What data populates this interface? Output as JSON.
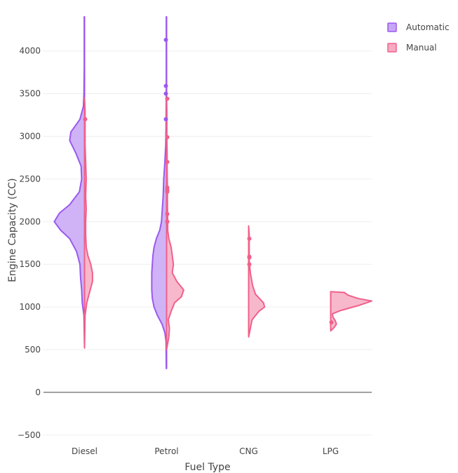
{
  "chart_data": {
    "type": "violin",
    "xlabel": "Fuel Type",
    "ylabel": "Engine Capacity (CC)",
    "categories": [
      "Diesel",
      "Petrol",
      "CNG",
      "LPG"
    ],
    "ylim": [
      -600,
      4400
    ],
    "yticks": [
      -500,
      0,
      500,
      1000,
      1500,
      2000,
      2500,
      3000,
      3500,
      4000
    ],
    "ytick_labels": [
      "−500",
      "0",
      "500",
      "1000",
      "1500",
      "2000",
      "2500",
      "3000",
      "3500",
      "4000"
    ],
    "grid": true,
    "legend_position": "top-right",
    "side_by_side_halves": true,
    "series": [
      {
        "name": "Automatic",
        "side": "left",
        "color": "#9b59f0",
        "fill": "#c7a6f5",
        "violins": {
          "Diesel": {
            "range": [
              520,
              4400
            ],
            "profile": [
              [
                520,
                0
              ],
              [
                900,
                1
              ],
              [
                1050,
                4
              ],
              [
                1200,
                5
              ],
              [
                1350,
                7
              ],
              [
                1500,
                8
              ],
              [
                1650,
                14
              ],
              [
                1800,
                26
              ],
              [
                1900,
                42
              ],
              [
                2000,
                53
              ],
              [
                2100,
                44
              ],
              [
                2200,
                26
              ],
              [
                2350,
                9
              ],
              [
                2500,
                5
              ],
              [
                2650,
                6
              ],
              [
                2800,
                15
              ],
              [
                2950,
                26
              ],
              [
                3050,
                24
              ],
              [
                3200,
                8
              ],
              [
                3350,
                2
              ],
              [
                3500,
                1
              ],
              [
                3800,
                0.5
              ],
              [
                4400,
                0.5
              ]
            ],
            "points": []
          },
          "Petrol": {
            "range": [
              280,
              4400
            ],
            "profile": [
              [
                280,
                0.5
              ],
              [
                600,
                1
              ],
              [
                700,
                3
              ],
              [
                800,
                8
              ],
              [
                900,
                16
              ],
              [
                1000,
                22
              ],
              [
                1100,
                25
              ],
              [
                1200,
                26
              ],
              [
                1300,
                26
              ],
              [
                1400,
                26
              ],
              [
                1500,
                25
              ],
              [
                1600,
                24
              ],
              [
                1700,
                22
              ],
              [
                1800,
                18
              ],
              [
                1900,
                12
              ],
              [
                2000,
                9
              ],
              [
                2100,
                8
              ],
              [
                2300,
                6
              ],
              [
                2500,
                5
              ],
              [
                2700,
                3
              ],
              [
                2900,
                1.5
              ],
              [
                3100,
                1
              ],
              [
                3500,
                0.5
              ],
              [
                4400,
                0.5
              ]
            ],
            "points": [
              4130,
              3590,
              3500,
              3200
            ]
          },
          "CNG": {
            "range": [
              null,
              null
            ],
            "profile": [],
            "points": []
          },
          "LPG": {
            "range": [
              null,
              null
            ],
            "profile": [],
            "points": []
          }
        }
      },
      {
        "name": "Manual",
        "side": "right",
        "color": "#f0608a",
        "fill": "#f7abc2",
        "violins": {
          "Diesel": {
            "range": [
              520,
              3450
            ],
            "profile": [
              [
                520,
                0
              ],
              [
                900,
                1
              ],
              [
                1050,
                4
              ],
              [
                1200,
                10
              ],
              [
                1300,
                14
              ],
              [
                1400,
                14
              ],
              [
                1500,
                11
              ],
              [
                1600,
                6
              ],
              [
                1700,
                3
              ],
              [
                1850,
                2
              ],
              [
                2000,
                2
              ],
              [
                2150,
                3
              ],
              [
                2300,
                2
              ],
              [
                2500,
                3
              ],
              [
                2700,
                2
              ],
              [
                2900,
                1
              ],
              [
                3100,
                1
              ],
              [
                3300,
                1
              ],
              [
                3450,
                0
              ]
            ],
            "points": [
              3200
            ]
          },
          "Petrol": {
            "range": [
              500,
              3450
            ],
            "profile": [
              [
                500,
                0
              ],
              [
                650,
                4
              ],
              [
                750,
                5
              ],
              [
                850,
                3
              ],
              [
                950,
                8
              ],
              [
                1050,
                14
              ],
              [
                1120,
                26
              ],
              [
                1200,
                30
              ],
              [
                1300,
                18
              ],
              [
                1400,
                10
              ],
              [
                1500,
                12
              ],
              [
                1600,
                10
              ],
              [
                1700,
                8
              ],
              [
                1800,
                4
              ],
              [
                1900,
                2
              ],
              [
                2000,
                2
              ],
              [
                2200,
                1.5
              ],
              [
                2400,
                1.5
              ],
              [
                2600,
                1
              ],
              [
                2800,
                1
              ],
              [
                3000,
                0.5
              ],
              [
                3300,
                0.5
              ],
              [
                3450,
                0
              ]
            ],
            "points": [
              3440,
              2990,
              2700,
              2400,
              2370,
              2350,
              2090,
              2000,
              2000
            ]
          },
          "CNG": {
            "range": [
              650,
              1950
            ],
            "profile": [
              [
                650,
                0
              ],
              [
                750,
                3
              ],
              [
                850,
                6
              ],
              [
                950,
                18
              ],
              [
                1000,
                28
              ],
              [
                1050,
                26
              ],
              [
                1150,
                12
              ],
              [
                1250,
                7
              ],
              [
                1400,
                3
              ],
              [
                1550,
                1
              ],
              [
                1700,
                1
              ],
              [
                1850,
                1
              ],
              [
                1950,
                0
              ]
            ],
            "points": [
              1800,
              1590,
              1580,
              1500
            ]
          },
          "LPG": {
            "range": [
              720,
              1180
            ],
            "profile": [
              [
                720,
                0
              ],
              [
                760,
                6
              ],
              [
                800,
                10
              ],
              [
                840,
                8
              ],
              [
                880,
                4
              ],
              [
                920,
                3
              ],
              [
                960,
                18
              ],
              [
                1020,
                50
              ],
              [
                1070,
                72
              ],
              [
                1100,
                48
              ],
              [
                1140,
                30
              ],
              [
                1170,
                24
              ],
              [
                1180,
                0
              ]
            ],
            "points": [
              820
            ]
          }
        }
      }
    ]
  }
}
